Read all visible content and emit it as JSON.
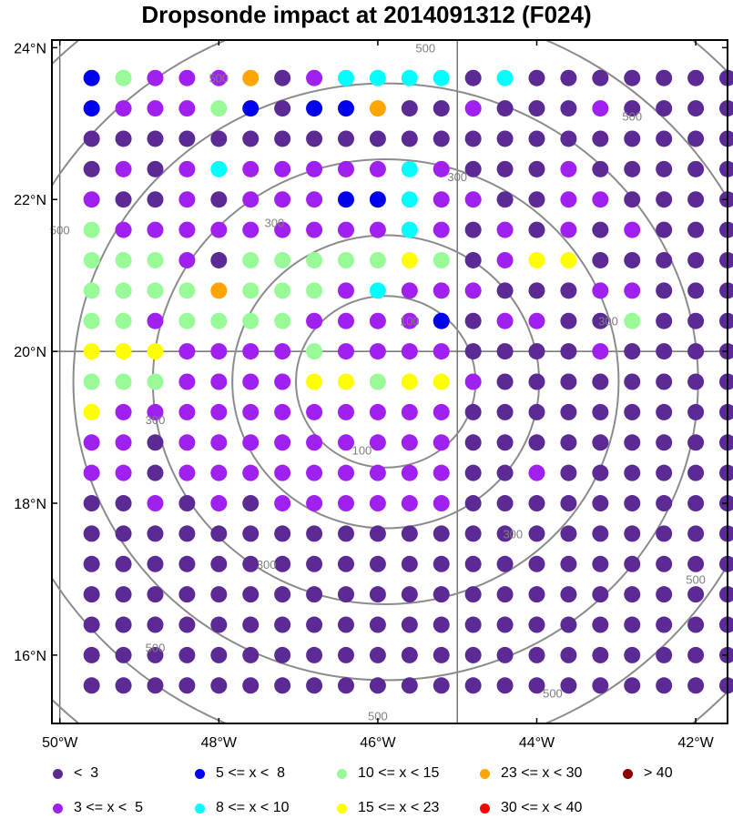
{
  "title": "Dropsonde impact at 2014091312 (F024)",
  "map": {
    "lon_range": [
      -50.1,
      -41.6
    ],
    "lat_range": [
      15.1,
      24.1
    ],
    "x_ticks": [
      {
        "lon": -50,
        "label": "50°W"
      },
      {
        "lon": -48,
        "label": "48°W"
      },
      {
        "lon": -46,
        "label": "46°W"
      },
      {
        "lon": -44,
        "label": "44°W"
      },
      {
        "lon": -42,
        "label": "42°W"
      }
    ],
    "y_ticks": [
      {
        "lat": 24,
        "label": "24°N"
      },
      {
        "lat": 22,
        "label": "22°N"
      },
      {
        "lat": 20,
        "label": "20°N"
      },
      {
        "lat": 18,
        "label": "18°N"
      },
      {
        "lat": 16,
        "label": "16°N"
      }
    ],
    "grid_lines": {
      "lons": [
        -50,
        -45
      ],
      "lats": [
        20
      ]
    },
    "grid_lons": [
      -49.6,
      -49.2,
      -48.8,
      -48.4,
      -48.0,
      -47.6,
      -47.2,
      -46.8,
      -46.4,
      -46.0,
      -45.6,
      -45.2,
      -44.8,
      -44.4,
      -44.0,
      -43.6,
      -43.2,
      -42.8,
      -42.4,
      -42.0,
      -41.6
    ],
    "grid_lats": [
      23.6,
      23.2,
      22.8,
      22.4,
      22.0,
      21.6,
      21.2,
      20.8,
      20.4,
      20.0,
      19.6,
      19.2,
      18.8,
      18.4,
      18.0,
      17.6,
      17.2,
      16.8,
      16.4,
      16.0,
      15.6
    ],
    "range_rings": {
      "center": [
        -45.9,
        19.6
      ],
      "unit": "km",
      "rings": [
        {
          "value": 100,
          "label": "100",
          "radius_deg": 1.13
        },
        {
          "value": 200,
          "label": "",
          "radius_deg": 1.93
        },
        {
          "value": 300,
          "label": "300",
          "radius_deg": 2.93
        },
        {
          "value": 400,
          "label": "",
          "radius_deg": 3.93
        },
        {
          "value": 500,
          "label": "500",
          "radius_deg": 4.93
        },
        {
          "value": 600,
          "label": "",
          "radius_deg": 5.93
        }
      ],
      "ring_labels": [
        {
          "text": "100",
          "lon": -45.6,
          "lat": 20.4
        },
        {
          "text": "100",
          "lon": -46.2,
          "lat": 18.7
        },
        {
          "text": "300",
          "lon": -47.3,
          "lat": 21.7
        },
        {
          "text": "300",
          "lon": -45.0,
          "lat": 22.3
        },
        {
          "text": "300",
          "lon": -43.1,
          "lat": 20.4
        },
        {
          "text": "300",
          "lon": -48.8,
          "lat": 19.1
        },
        {
          "text": "300",
          "lon": -47.4,
          "lat": 17.2
        },
        {
          "text": "300",
          "lon": -44.3,
          "lat": 17.6
        },
        {
          "text": "500",
          "lon": -48.0,
          "lat": 23.6
        },
        {
          "text": "500",
          "lon": -45.4,
          "lat": 24.0
        },
        {
          "text": "500",
          "lon": -42.8,
          "lat": 23.1
        },
        {
          "text": "500",
          "lon": -50.0,
          "lat": 21.6
        },
        {
          "text": "500",
          "lon": -48.8,
          "lat": 16.1
        },
        {
          "text": "500",
          "lon": -46.0,
          "lat": 15.2
        },
        {
          "text": "500",
          "lon": -43.8,
          "lat": 15.5
        },
        {
          "text": "500",
          "lon": -42.0,
          "lat": 17.0
        }
      ]
    },
    "point_rows": [
      "125557654444646666666",
      "155521611766566656666",
      "666666666666666666666",
      "656545555545666566666",
      "566565551145566556666",
      "255555555545656565666",
      "222562222232653366666",
      "222272225455566655666",
      "225222255551655662666",
      "333555525555666656666",
      "222555533233566666666",
      "355555555555666666666",
      "556555555555666666666",
      "556555555555665666666",
      "665656555555666666666",
      "666666666666666666666",
      "666666666666666666666",
      "666666666666666666666",
      "666666666666666666666",
      "666666666666666666666",
      "666666666666666666666"
    ]
  },
  "chart_data": {
    "type": "scatter",
    "title": "Dropsonde impact at 2014091312 (F024)",
    "xlabel": "",
    "ylabel": "",
    "x_range_lon": [
      -50.1,
      -41.6
    ],
    "y_range_lat": [
      15.1,
      24.1
    ],
    "grid": true,
    "legend_placement": "bottom",
    "categories": [
      {
        "code": "6",
        "label": "<  3",
        "color": "#5b2a95"
      },
      {
        "code": "5",
        "label": "3 <= x <  5",
        "color": "#a020f0"
      },
      {
        "code": "1",
        "label": "5 <= x <  8",
        "color": "#0000ee"
      },
      {
        "code": "4",
        "label": "8 <= x < 10",
        "color": "#00ffff"
      },
      {
        "code": "2",
        "label": "10 <= x < 15",
        "color": "#98fb98"
      },
      {
        "code": "3",
        "label": "15 <= x < 23",
        "color": "#ffff00"
      },
      {
        "code": "7",
        "label": "23 <= x < 30",
        "color": "#ffa500"
      },
      {
        "code": "8",
        "label": "30 <= x < 40",
        "color": "#ff0000"
      },
      {
        "code": "9",
        "label": "> 40",
        "color": "#8b0000"
      }
    ]
  },
  "legend": {
    "items": [
      {
        "label": "<  3",
        "color": "#5b2a95"
      },
      {
        "label": "5 <= x <  8",
        "color": "#0000ee"
      },
      {
        "label": "10 <= x < 15",
        "color": "#98fb98"
      },
      {
        "label": "23 <= x < 30",
        "color": "#ffa500"
      },
      {
        "label": "> 40",
        "color": "#8b0000"
      },
      {
        "label": "3 <= x <  5",
        "color": "#a020f0"
      },
      {
        "label": "8 <= x < 10",
        "color": "#00ffff"
      },
      {
        "label": "15 <= x < 23",
        "color": "#ffff00"
      },
      {
        "label": "30 <= x < 40",
        "color": "#ff0000"
      }
    ]
  }
}
